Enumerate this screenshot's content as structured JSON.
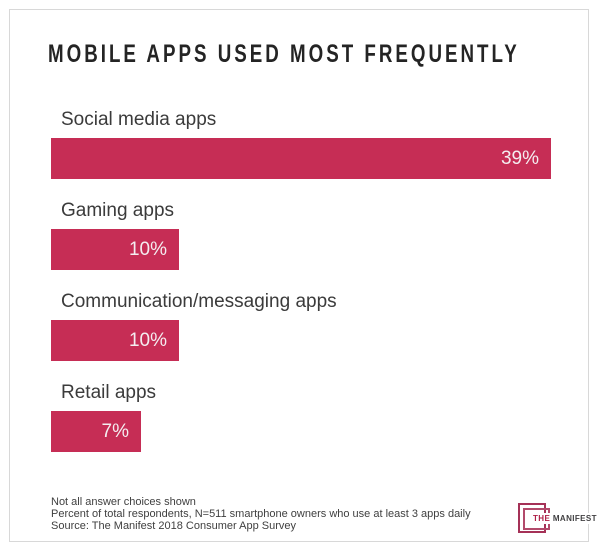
{
  "title": "MOBILE APPS USED MOST FREQUENTLY",
  "chart_data": {
    "type": "bar",
    "orientation": "horizontal",
    "title": "MOBILE APPS USED MOST FREQUENTLY",
    "categories": [
      "Social media apps",
      "Gaming apps",
      "Communication/messaging apps",
      "Retail apps"
    ],
    "values": [
      39,
      10,
      10,
      7
    ],
    "value_labels": [
      "39%",
      "10%",
      "10%",
      "7%"
    ],
    "xlim": [
      0,
      39
    ],
    "bar_color": "#C62D55",
    "value_label_position": "inside-right",
    "grid": false,
    "legend": false
  },
  "footer": {
    "notes": [
      "Not all answer choices shown",
      "Percent of total respondents, N=511 smartphone owners who use at least 3 apps daily",
      "Source: The Manifest 2018 Consumer App Survey"
    ]
  },
  "logo": {
    "the": "THE",
    "manifest": "MANIFEST"
  },
  "colors": {
    "bar": "#C62D55",
    "title_text": "#242424",
    "label_text": "#3B3B3B",
    "value_text": "#F4EDF0",
    "footer_text": "#3F3F3F",
    "card_border": "#D8D8D8",
    "logo_accent": "#A53157"
  }
}
